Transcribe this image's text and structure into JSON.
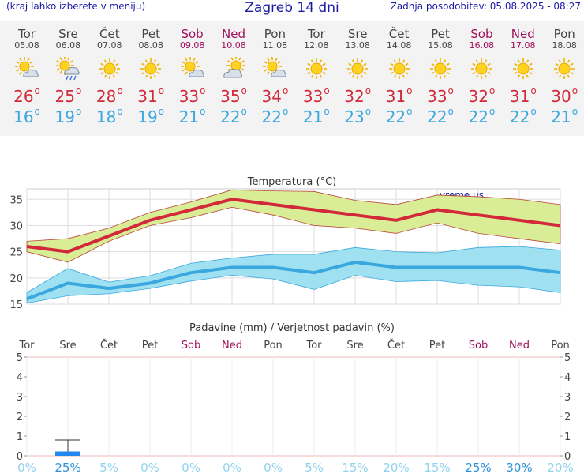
{
  "header": {
    "left_note": "(kraj lahko izberete v meniju)",
    "title": "Zagreb 14 dni",
    "updated": "Zadnja posodobitev: 05.08.2025 - 08:27"
  },
  "colors": {
    "max": "#d2293a",
    "min": "#3aa7de",
    "weekend": "#a0105a",
    "header": "#1a1aa6",
    "precip_bar": "#2288ee"
  },
  "days": [
    {
      "name": "Tor",
      "date": "05.08",
      "icon": "sun-cloud-icon",
      "max": "26",
      "min": "16",
      "weekend": false
    },
    {
      "name": "Sre",
      "date": "06.08",
      "icon": "sun-cloud-rain-icon",
      "max": "25",
      "min": "19",
      "weekend": false
    },
    {
      "name": "Čet",
      "date": "07.08",
      "icon": "sun-icon",
      "max": "28",
      "min": "18",
      "weekend": false
    },
    {
      "name": "Pet",
      "date": "08.08",
      "icon": "sun-icon",
      "max": "31",
      "min": "19",
      "weekend": false
    },
    {
      "name": "Sob",
      "date": "09.08",
      "icon": "sun-cloud-icon",
      "max": "33",
      "min": "21",
      "weekend": true
    },
    {
      "name": "Ned",
      "date": "10.08",
      "icon": "cloud-sun-icon",
      "max": "35",
      "min": "22",
      "weekend": true
    },
    {
      "name": "Pon",
      "date": "11.08",
      "icon": "sun-cloud-icon",
      "max": "34",
      "min": "22",
      "weekend": false
    },
    {
      "name": "Tor",
      "date": "12.08",
      "icon": "sun-icon",
      "max": "33",
      "min": "21",
      "weekend": false
    },
    {
      "name": "Sre",
      "date": "13.08",
      "icon": "sun-icon",
      "max": "32",
      "min": "23",
      "weekend": false
    },
    {
      "name": "Čet",
      "date": "14.08",
      "icon": "sun-icon",
      "max": "31",
      "min": "22",
      "weekend": false
    },
    {
      "name": "Pet",
      "date": "15.08",
      "icon": "sun-icon",
      "max": "33",
      "min": "22",
      "weekend": false
    },
    {
      "name": "Sob",
      "date": "16.08",
      "icon": "sun-icon",
      "max": "32",
      "min": "22",
      "weekend": true
    },
    {
      "name": "Ned",
      "date": "17.08",
      "icon": "sun-icon",
      "max": "31",
      "min": "22",
      "weekend": true
    },
    {
      "name": "Pon",
      "date": "18.08",
      "icon": "sun-icon",
      "max": "30",
      "min": "21",
      "weekend": false
    }
  ],
  "chart_data": [
    {
      "type": "line",
      "title": "Temperatura (°C)",
      "watermark": "vreme.us",
      "ylim": [
        15,
        37
      ],
      "yticks": [
        15,
        20,
        25,
        30,
        35
      ],
      "grid": true,
      "x": [
        "Tor",
        "Sre",
        "Čet",
        "Pet",
        "Sob",
        "Ned",
        "Pon",
        "Tor",
        "Sre",
        "Čet",
        "Pet",
        "Sob",
        "Ned",
        "Pon"
      ],
      "series": [
        {
          "values": [
            26,
            25,
            28,
            31,
            33,
            35,
            34,
            33,
            32,
            31,
            33,
            32,
            31,
            30
          ],
          "band_upper": [
            27,
            27.5,
            29.5,
            32.5,
            34.5,
            36.8,
            36.6,
            36.5,
            34.8,
            34,
            35.8,
            35.5,
            35,
            34
          ],
          "band_lower": [
            25,
            23,
            27,
            30,
            31.5,
            33.5,
            32,
            30,
            29.5,
            28.5,
            30.5,
            28.5,
            27.5,
            26.5
          ]
        },
        {
          "values": [
            16,
            19,
            18,
            19,
            21,
            22,
            22,
            21,
            23,
            22,
            22,
            22,
            22,
            21
          ],
          "band_upper": [
            17.2,
            21.8,
            19.2,
            20.4,
            22.8,
            23.8,
            24.5,
            24.5,
            25.8,
            25,
            24.8,
            25.8,
            26,
            25.3
          ],
          "band_lower": [
            15.2,
            16.6,
            17,
            18,
            19.4,
            20.5,
            19.8,
            17.8,
            20.5,
            19.3,
            19.5,
            18.6,
            18.3,
            17.2
          ]
        }
      ]
    },
    {
      "type": "bar",
      "title": "Padavine (mm) / Verjetnost padavin (%)",
      "ylim": [
        0,
        5
      ],
      "yticks": [
        0,
        1,
        2,
        3,
        4,
        5
      ],
      "categories": [
        "Tor",
        "Sre",
        "Čet",
        "Pet",
        "Sob",
        "Ned",
        "Pon",
        "Tor",
        "Sre",
        "Čet",
        "Pet",
        "Sob",
        "Ned",
        "Pon"
      ],
      "values": [
        0,
        0.1,
        0,
        0,
        0,
        0,
        0,
        0,
        0,
        0,
        0,
        0,
        0,
        0
      ],
      "error_high": [
        0,
        0.8,
        0,
        0,
        0,
        0,
        0,
        0,
        0,
        0,
        0,
        0,
        0,
        0
      ],
      "probability": [
        "0%",
        "25%",
        "5%",
        "0%",
        "0%",
        "0%",
        "0%",
        "5%",
        "15%",
        "20%",
        "15%",
        "25%",
        "30%",
        "20%"
      ]
    }
  ]
}
